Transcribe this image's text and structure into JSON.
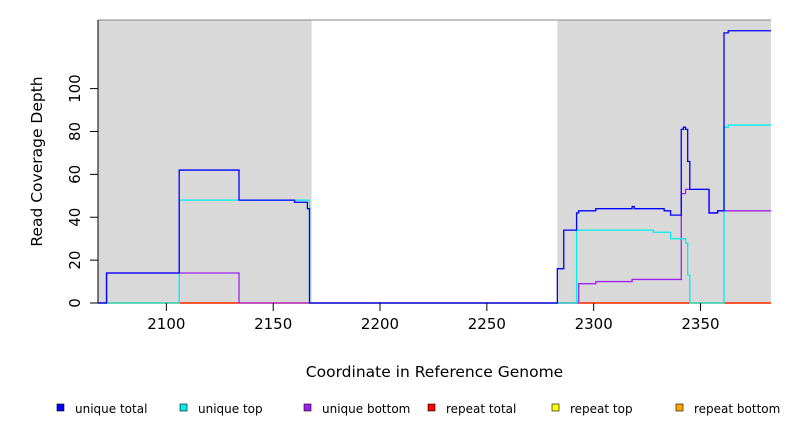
{
  "chart_data": {
    "type": "line",
    "xlabel": "Coordinate in Reference Genome",
    "ylabel": "Read Coverage Depth",
    "xlim": [
      2068,
      2383
    ],
    "ylim": [
      0,
      132
    ],
    "x_ticks": [
      2100,
      2150,
      2200,
      2250,
      2300,
      2350
    ],
    "y_ticks": [
      0,
      20,
      40,
      60,
      80,
      100
    ],
    "shaded_regions": [
      [
        2068,
        2168
      ],
      [
        2283,
        2383
      ]
    ],
    "series": [
      {
        "name": "unique total",
        "color": "#0000ff",
        "points": [
          [
            2068,
            0
          ],
          [
            2072,
            0
          ],
          [
            2072,
            14
          ],
          [
            2106,
            14
          ],
          [
            2106,
            62
          ],
          [
            2134,
            62
          ],
          [
            2134,
            48
          ],
          [
            2160,
            48
          ],
          [
            2160,
            47
          ],
          [
            2166,
            47
          ],
          [
            2166,
            44
          ],
          [
            2167,
            44
          ],
          [
            2167,
            0
          ],
          [
            2283,
            0
          ],
          [
            2283,
            16
          ],
          [
            2286,
            16
          ],
          [
            2286,
            34
          ],
          [
            2292,
            34
          ],
          [
            2292,
            42
          ],
          [
            2293,
            42
          ],
          [
            2293,
            43
          ],
          [
            2301,
            43
          ],
          [
            2301,
            44
          ],
          [
            2318,
            44
          ],
          [
            2318,
            45
          ],
          [
            2319,
            45
          ],
          [
            2319,
            44
          ],
          [
            2333,
            44
          ],
          [
            2333,
            43
          ],
          [
            2336,
            43
          ],
          [
            2336,
            41
          ],
          [
            2341,
            41
          ],
          [
            2341,
            81
          ],
          [
            2342,
            81
          ],
          [
            2342,
            82
          ],
          [
            2343,
            82
          ],
          [
            2343,
            81
          ],
          [
            2344,
            81
          ],
          [
            2344,
            66
          ],
          [
            2345,
            66
          ],
          [
            2345,
            53
          ],
          [
            2354,
            53
          ],
          [
            2354,
            42
          ],
          [
            2358,
            42
          ],
          [
            2358,
            43
          ],
          [
            2361,
            43
          ],
          [
            2361,
            126
          ],
          [
            2363,
            126
          ],
          [
            2363,
            127
          ],
          [
            2383,
            127
          ]
        ]
      },
      {
        "name": "unique top",
        "color": "#00eeee",
        "points": [
          [
            2068,
            0
          ],
          [
            2106,
            0
          ],
          [
            2106,
            48
          ],
          [
            2167,
            48
          ],
          [
            2167,
            0
          ],
          [
            2292,
            0
          ],
          [
            2292,
            34
          ],
          [
            2328,
            34
          ],
          [
            2328,
            33
          ],
          [
            2336,
            33
          ],
          [
            2336,
            30
          ],
          [
            2343,
            30
          ],
          [
            2343,
            28
          ],
          [
            2344,
            28
          ],
          [
            2344,
            13
          ],
          [
            2345,
            13
          ],
          [
            2345,
            0
          ],
          [
            2361,
            0
          ],
          [
            2361,
            82
          ],
          [
            2363,
            82
          ],
          [
            2363,
            83
          ],
          [
            2383,
            83
          ]
        ]
      },
      {
        "name": "unique bottom",
        "color": "#a020f0",
        "points": [
          [
            2068,
            0
          ],
          [
            2072,
            0
          ],
          [
            2072,
            14
          ],
          [
            2134,
            14
          ],
          [
            2134,
            0
          ],
          [
            2293,
            0
          ],
          [
            2293,
            9
          ],
          [
            2301,
            9
          ],
          [
            2301,
            10
          ],
          [
            2318,
            10
          ],
          [
            2318,
            11
          ],
          [
            2341,
            11
          ],
          [
            2341,
            51
          ],
          [
            2343,
            51
          ],
          [
            2343,
            53
          ],
          [
            2354,
            53
          ],
          [
            2354,
            42
          ],
          [
            2358,
            42
          ],
          [
            2358,
            43
          ],
          [
            2383,
            43
          ]
        ]
      },
      {
        "name": "repeat total",
        "color": "#ff0000",
        "points": [
          [
            2068,
            0
          ],
          [
            2383,
            0
          ]
        ]
      },
      {
        "name": "repeat top",
        "color": "#ffff00",
        "points": [
          [
            2068,
            0
          ],
          [
            2383,
            0
          ]
        ]
      },
      {
        "name": "repeat bottom",
        "color": "#ffa500",
        "points": [
          [
            2068,
            0
          ],
          [
            2383,
            0
          ]
        ]
      }
    ],
    "legend": {
      "placement": "bottom",
      "entries": [
        "unique total",
        "unique top",
        "unique bottom",
        "repeat total",
        "repeat top",
        "repeat bottom"
      ]
    }
  }
}
